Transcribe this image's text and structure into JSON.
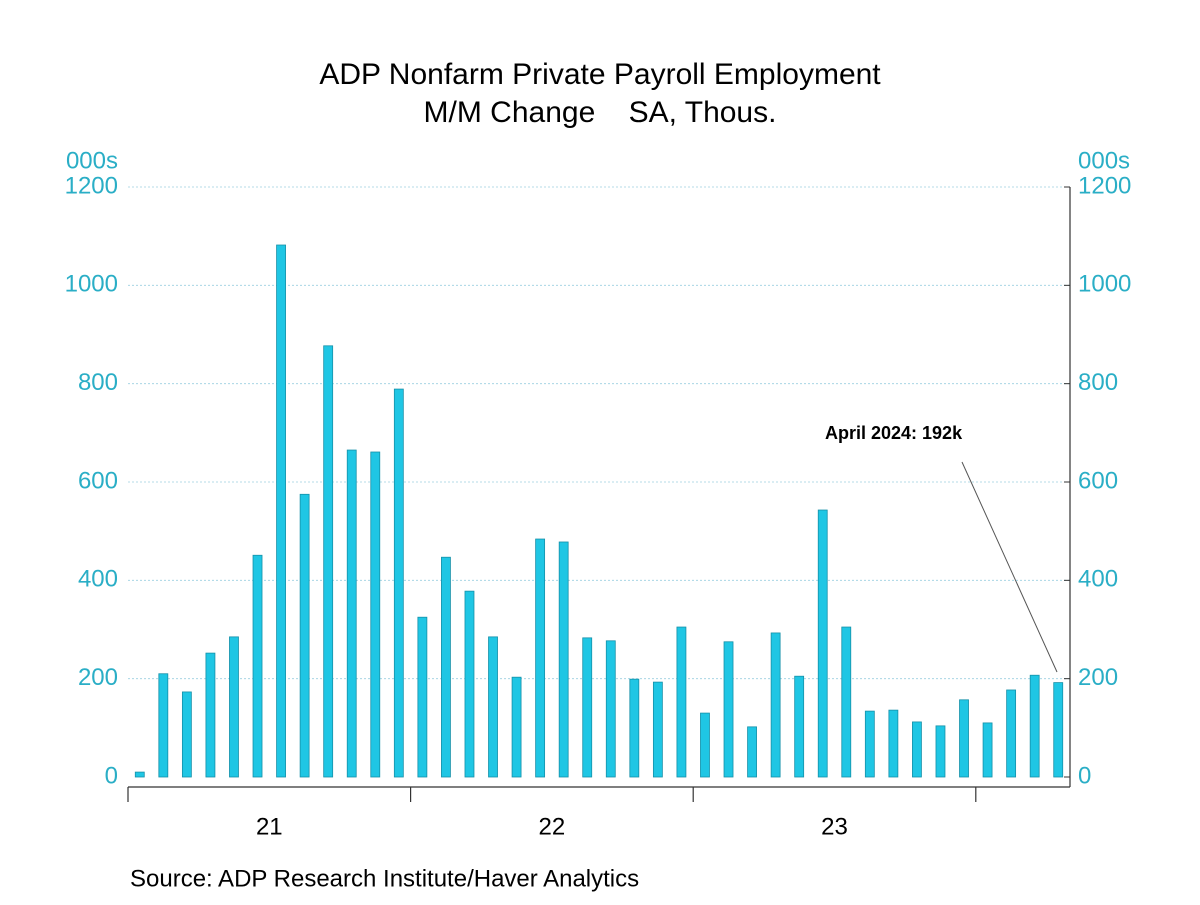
{
  "chart_data": {
    "type": "bar",
    "title": "ADP Nonfarm Private Payroll Employment",
    "subtitle": "M/M Change    SA, Thous.",
    "y_unit_left": "000s",
    "y_unit_right": "000s",
    "xlabels": [
      "21",
      "22",
      "23"
    ],
    "values": [
      10,
      210,
      173,
      252,
      285,
      451,
      1082,
      575,
      877,
      665,
      661,
      789,
      325,
      447,
      378,
      285,
      203,
      484,
      478,
      283,
      277,
      199,
      193,
      305,
      130,
      275,
      102,
      293,
      205,
      543,
      305,
      134,
      136,
      112,
      104,
      157,
      110,
      177,
      207,
      192
    ],
    "color": "#1fc6e4",
    "ylim": [
      0,
      1200
    ],
    "yticks": [
      0,
      200,
      400,
      600,
      800,
      1000,
      1200
    ],
    "grid": true,
    "annotation": "April 2024: 192k",
    "source": "Source:  ADP Research Institute/Haver Analytics"
  }
}
